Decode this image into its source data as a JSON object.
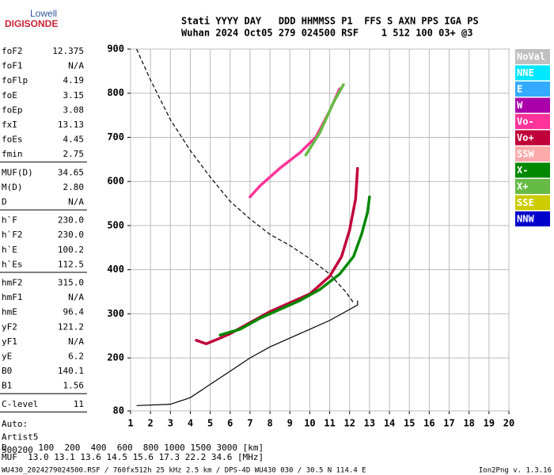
{
  "logo": {
    "line1": "Lowell",
    "line2": "DIGISONDE"
  },
  "header": {
    "line1": "Stati YYYY DAY   DDD HHMMSS P1  FFS S AXN PPS IGA PS",
    "line2": "Wuhan 2024 Oct05 279 024500 RSF    1 512 100 03+ @3"
  },
  "parameters": [
    [
      [
        "foF2",
        "12.375"
      ],
      [
        "foF1",
        "N/A"
      ],
      [
        "foFlp",
        "4.19"
      ],
      [
        "foE",
        "3.15"
      ],
      [
        "foEp",
        "3.08"
      ],
      [
        "fxI",
        "13.13"
      ],
      [
        "foEs",
        "4.45"
      ],
      [
        "fmin",
        "2.75"
      ]
    ],
    [
      [
        "MUF(D)",
        "34.65"
      ],
      [
        "M(D)",
        "2.80"
      ],
      [
        "D",
        "N/A"
      ]
    ],
    [
      [
        "h`F",
        "230.0"
      ],
      [
        "h`F2",
        "230.0"
      ],
      [
        "h`E",
        "100.2"
      ],
      [
        "h`Es",
        "112.5"
      ]
    ],
    [
      [
        "hmF2",
        "315.0"
      ],
      [
        "hmF1",
        "N/A"
      ],
      [
        "hmE",
        "96.4"
      ],
      [
        "yF2",
        "121.2"
      ],
      [
        "yF1",
        "N/A"
      ],
      [
        "yE",
        "6.2"
      ],
      [
        "B0",
        "140.1"
      ],
      [
        "B1",
        "1.56"
      ]
    ],
    [
      [
        "C-level",
        "11"
      ]
    ]
  ],
  "scaling": [
    "Auto:",
    "Artist5",
    "500200"
  ],
  "muf_table": {
    "line1": "D      100  200  400  600  800 1000 1500 3000 [km]",
    "line2": "MUF  13.0 13.1 13.6 14.5 15.6 17.3 22.2 34.6 [MHz]"
  },
  "footer": {
    "left": "WU430_2024279024500.RSF / 760fx512h 25 kHz 2.5 km / DPS-4D WU430 030 / 30.5 N 114.4 E",
    "right": "Ion2Png v. 1.3.16"
  },
  "chart_data": {
    "type": "line",
    "xlim": [
      1,
      20
    ],
    "xticks": [
      1,
      2,
      3,
      4,
      5,
      6,
      7,
      8,
      9,
      10,
      11,
      12,
      13,
      14,
      15,
      16,
      17,
      18,
      19,
      20
    ],
    "ylim": [
      80,
      900
    ],
    "yticks": [
      80,
      200,
      300,
      400,
      500,
      600,
      700,
      800,
      900
    ],
    "grid": true,
    "series": [
      {
        "name": "NoVal",
        "color": "#c0c0c0",
        "x": [],
        "values": []
      },
      {
        "name": "NNE",
        "color": "#00e8ff",
        "x": [],
        "values": []
      },
      {
        "name": "E",
        "color": "#33aaff",
        "x": [],
        "values": []
      },
      {
        "name": "W",
        "color": "#aa00aa",
        "x": [],
        "values": []
      },
      {
        "name": "Vo-",
        "color": "#ff3399",
        "x": [
          7,
          7.5,
          8.5,
          9.5,
          10.3,
          11,
          11.5
        ],
        "values": [
          565,
          590,
          630,
          665,
          700,
          760,
          810
        ]
      },
      {
        "name": "Vo+",
        "color": "#c0003a",
        "x": [
          4.3,
          4.8,
          5.5,
          6,
          7,
          8,
          9,
          10,
          11,
          11.6,
          12,
          12.3,
          12.4
        ],
        "values": [
          240,
          232,
          245,
          255,
          280,
          305,
          325,
          345,
          385,
          430,
          490,
          560,
          630
        ]
      },
      {
        "name": "SSW",
        "color": "#ffaaaa",
        "x": [],
        "values": []
      },
      {
        "name": "X-",
        "color": "#008800",
        "x": [
          5.5,
          6.5,
          7.5,
          8.5,
          9.5,
          10.5,
          11.5,
          12.2,
          12.6,
          12.9,
          13
        ],
        "values": [
          252,
          265,
          290,
          310,
          330,
          355,
          390,
          430,
          480,
          530,
          565
        ]
      },
      {
        "name": "X+",
        "color": "#66bb44",
        "x": [
          9.8,
          10.5,
          11.2,
          11.7
        ],
        "values": [
          660,
          710,
          780,
          820
        ]
      },
      {
        "name": "SSE",
        "color": "#cccc00",
        "x": [],
        "values": []
      },
      {
        "name": "NNW",
        "color": "#0000cc",
        "x": [],
        "values": []
      }
    ],
    "profiles": [
      {
        "style": "dashed",
        "x": [
          1.3,
          2,
          3,
          4,
          5,
          6,
          7,
          8,
          9,
          10,
          11,
          11.8,
          12.2
        ],
        "values": [
          900,
          830,
          740,
          670,
          610,
          555,
          515,
          480,
          455,
          425,
          390,
          350,
          325
        ]
      },
      {
        "style": "solid",
        "x": [
          1.3,
          3,
          4,
          5,
          6,
          7,
          8,
          9,
          10,
          11,
          11.8,
          12.4,
          12.4
        ],
        "values": [
          92,
          95,
          110,
          140,
          170,
          200,
          225,
          245,
          265,
          285,
          305,
          320,
          330
        ]
      }
    ]
  }
}
